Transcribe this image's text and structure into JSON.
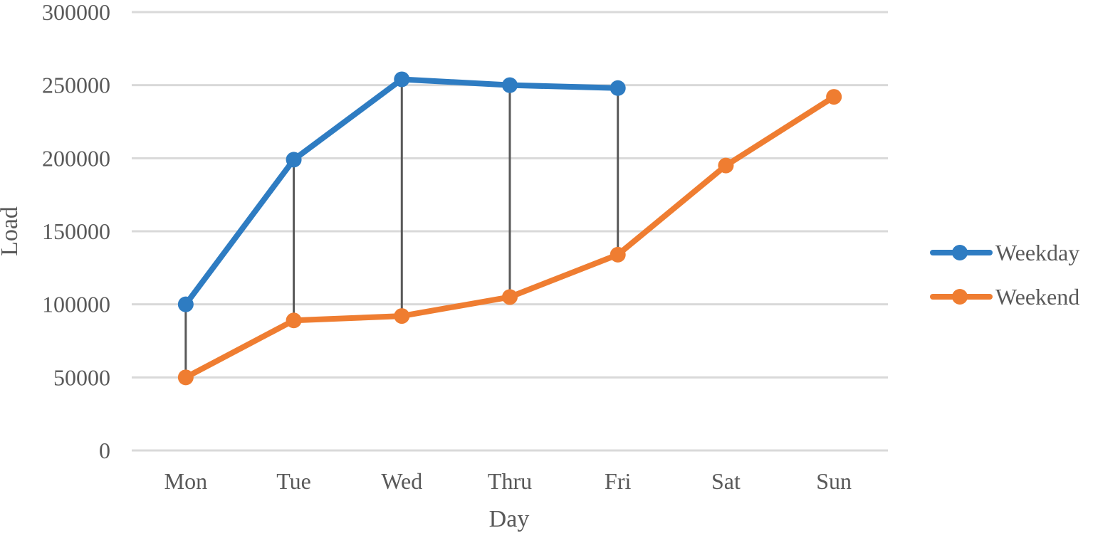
{
  "chart_data": {
    "type": "line",
    "title": "",
    "xlabel": "Day",
    "ylabel": "Load",
    "categories": [
      "Mon",
      "Tue",
      "Wed",
      "Thru",
      "Fri",
      "Sat",
      "Sun"
    ],
    "ylim": [
      0,
      300000
    ],
    "yticks": [
      "0",
      "50000",
      "100000",
      "150000",
      "200000",
      "250000",
      "300000"
    ],
    "grid": true,
    "legend_position": "right",
    "drop_lines": true,
    "series": [
      {
        "name": "Weekday",
        "color": "#2e7cc2",
        "values": [
          100000,
          199000,
          254000,
          250000,
          248000,
          null,
          null
        ]
      },
      {
        "name": "Weekend",
        "color": "#ef7d31",
        "values": [
          50000,
          89000,
          92000,
          105000,
          134000,
          195000,
          242000
        ]
      }
    ]
  }
}
